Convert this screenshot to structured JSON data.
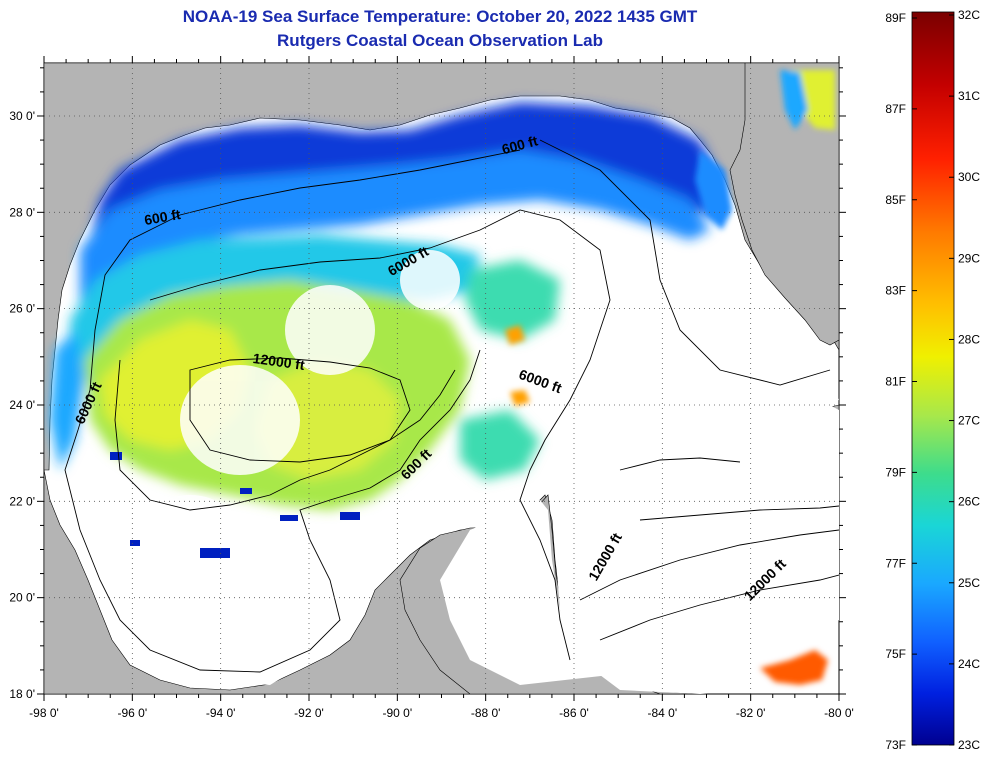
{
  "title": {
    "line1": "NOAA-19 Sea Surface Temperature:  October 20, 2022 1435 GMT",
    "line2": "Rutgers Coastal Ocean Observation Lab"
  },
  "axes": {
    "lat_labels": [
      "30 0'",
      "28 0'",
      "26 0'",
      "24 0'",
      "22 0'",
      "20 0'",
      "18 0'"
    ],
    "lat_values": [
      30,
      28,
      26,
      24,
      22,
      20,
      18
    ],
    "lon_labels": [
      "-98 0'",
      "-96 0'",
      "-94 0'",
      "-92 0'",
      "-90 0'",
      "-88 0'",
      "-86 0'",
      "-84 0'",
      "-82 0'",
      "-80 0'"
    ],
    "lon_values": [
      -98,
      -96,
      -94,
      -92,
      -90,
      -88,
      -86,
      -84,
      -82,
      -80
    ],
    "lat_range": [
      18,
      31.1
    ],
    "lon_range": [
      -98,
      -80
    ]
  },
  "contour_labels": [
    {
      "text": "600 ft",
      "lon": -87.2,
      "lat": 29.3,
      "angle": -15
    },
    {
      "text": "600 ft",
      "lon": -95.3,
      "lat": 27.8,
      "angle": -10
    },
    {
      "text": "6000 ft",
      "lon": -89.7,
      "lat": 26.9,
      "angle": -30
    },
    {
      "text": "12000 ft",
      "lon": -92.7,
      "lat": 24.8,
      "angle": 8
    },
    {
      "text": "6000 ft",
      "lon": -86.8,
      "lat": 24.4,
      "angle": 20
    },
    {
      "text": "6000 ft",
      "lon": -96.9,
      "lat": 24.0,
      "angle": -65
    },
    {
      "text": "600 ft",
      "lon": -89.5,
      "lat": 22.7,
      "angle": -45
    },
    {
      "text": "12000 ft",
      "lon": -85.2,
      "lat": 20.8,
      "angle": -60
    },
    {
      "text": "12000 ft",
      "lon": -81.6,
      "lat": 20.3,
      "angle": -45
    }
  ],
  "colorbar": {
    "fahrenheit": [
      "89F",
      "87F",
      "85F",
      "83F",
      "81F",
      "79F",
      "77F",
      "75F",
      "73F"
    ],
    "celsius": [
      "32C",
      "31C",
      "30C",
      "29C",
      "28C",
      "27C",
      "26C",
      "25C",
      "24C",
      "23C"
    ],
    "colors": [
      "#7a0000",
      "#c40000",
      "#ff2000",
      "#ff7a00",
      "#ffc000",
      "#f0f000",
      "#a8e84a",
      "#3ddc8c",
      "#1ad6d6",
      "#1aa8ff",
      "#1060ff",
      "#0020e0",
      "#000090"
    ]
  }
}
